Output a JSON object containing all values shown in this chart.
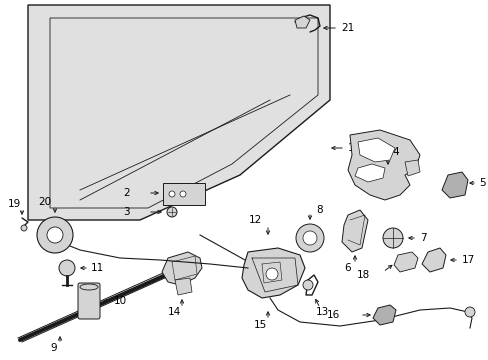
{
  "bg_color": "#ffffff",
  "fig_width": 4.89,
  "fig_height": 3.6,
  "dpi": 100,
  "line_color": "#1a1a1a",
  "label_color": "#000000",
  "font_size": 7.5,
  "hood_fill": "#e0e0e0",
  "part_fill": "#d4d4d4",
  "part_fill_dark": "#b0b0b0"
}
